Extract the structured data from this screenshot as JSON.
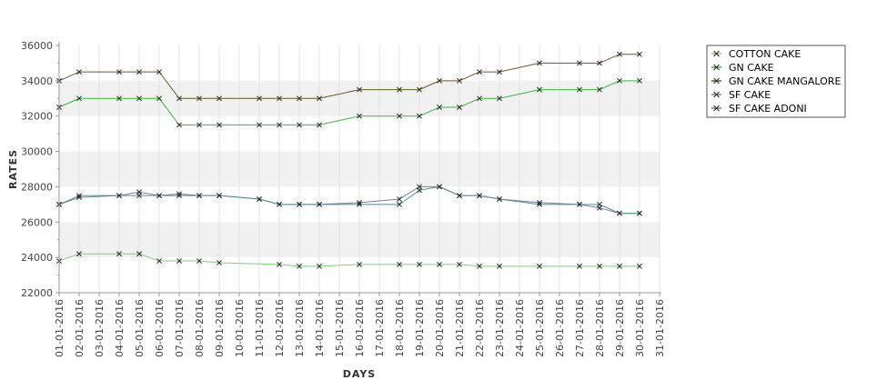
{
  "chart_data": {
    "type": "line",
    "xlabel": "DAYS",
    "ylabel": "RATES",
    "ylim": [
      22000,
      36000
    ],
    "y_ticks": [
      22000,
      24000,
      26000,
      28000,
      30000,
      32000,
      34000,
      36000
    ],
    "grid": true,
    "legend_position": "top-right",
    "categories": [
      "01-01-2016",
      "02-01-2016",
      "03-01-2016",
      "04-01-2016",
      "05-01-2016",
      "06-01-2016",
      "07-01-2016",
      "08-01-2016",
      "09-01-2016",
      "10-01-2016",
      "11-01-2016",
      "12-01-2016",
      "13-01-2016",
      "14-01-2016",
      "15-01-2016",
      "16-01-2016",
      "17-01-2016",
      "18-01-2016",
      "19-01-2016",
      "20-01-2016",
      "21-01-2016",
      "22-01-2016",
      "23-01-2016",
      "24-01-2016",
      "25-01-2016",
      "26-01-2016",
      "27-01-2016",
      "28-01-2016",
      "29-01-2016",
      "30-01-2016",
      "31-01-2016"
    ],
    "series": [
      {
        "name": "COTTON CAKE",
        "color": "#7fd07f",
        "points": [
          [
            "01-01-2016",
            23800
          ],
          [
            "02-01-2016",
            24200
          ],
          [
            "04-01-2016",
            24200
          ],
          [
            "05-01-2016",
            24200
          ],
          [
            "06-01-2016",
            23800
          ],
          [
            "07-01-2016",
            23800
          ],
          [
            "08-01-2016",
            23800
          ],
          [
            "09-01-2016",
            23700
          ],
          [
            "12-01-2016",
            23600
          ],
          [
            "13-01-2016",
            23500
          ],
          [
            "14-01-2016",
            23500
          ],
          [
            "16-01-2016",
            23600
          ],
          [
            "18-01-2016",
            23600
          ],
          [
            "19-01-2016",
            23600
          ],
          [
            "20-01-2016",
            23600
          ],
          [
            "21-01-2016",
            23600
          ],
          [
            "22-01-2016",
            23500
          ],
          [
            "23-01-2016",
            23500
          ],
          [
            "25-01-2016",
            23500
          ],
          [
            "27-01-2016",
            23500
          ],
          [
            "28-01-2016",
            23500
          ],
          [
            "29-01-2016",
            23500
          ],
          [
            "30-01-2016",
            23500
          ]
        ]
      },
      {
        "name": "GN CAKE",
        "color": "#3cb83c",
        "points": [
          [
            "01-01-2016",
            32500
          ],
          [
            "02-01-2016",
            33000
          ],
          [
            "04-01-2016",
            33000
          ],
          [
            "05-01-2016",
            33000
          ],
          [
            "06-01-2016",
            33000
          ],
          [
            "07-01-2016",
            31500
          ],
          [
            "08-01-2016",
            31500
          ],
          [
            "09-01-2016",
            31500
          ],
          [
            "11-01-2016",
            31500
          ],
          [
            "12-01-2016",
            31500
          ],
          [
            "13-01-2016",
            31500
          ],
          [
            "14-01-2016",
            31500
          ],
          [
            "16-01-2016",
            32000
          ],
          [
            "18-01-2016",
            32000
          ],
          [
            "19-01-2016",
            32000
          ],
          [
            "20-01-2016",
            32500
          ],
          [
            "21-01-2016",
            32500
          ],
          [
            "22-01-2016",
            33000
          ],
          [
            "23-01-2016",
            33000
          ],
          [
            "25-01-2016",
            33500
          ],
          [
            "27-01-2016",
            33500
          ],
          [
            "28-01-2016",
            33500
          ],
          [
            "29-01-2016",
            34000
          ],
          [
            "30-01-2016",
            34000
          ]
        ]
      },
      {
        "name": "GN CAKE MANGALORE",
        "color": "#6b5a1e",
        "points": [
          [
            "01-01-2016",
            34000
          ],
          [
            "02-01-2016",
            34500
          ],
          [
            "04-01-2016",
            34500
          ],
          [
            "05-01-2016",
            34500
          ],
          [
            "06-01-2016",
            34500
          ],
          [
            "07-01-2016",
            33000
          ],
          [
            "08-01-2016",
            33000
          ],
          [
            "09-01-2016",
            33000
          ],
          [
            "11-01-2016",
            33000
          ],
          [
            "12-01-2016",
            33000
          ],
          [
            "13-01-2016",
            33000
          ],
          [
            "14-01-2016",
            33000
          ],
          [
            "16-01-2016",
            33500
          ],
          [
            "18-01-2016",
            33500
          ],
          [
            "19-01-2016",
            33500
          ],
          [
            "20-01-2016",
            34000
          ],
          [
            "21-01-2016",
            34000
          ],
          [
            "22-01-2016",
            34500
          ],
          [
            "23-01-2016",
            34500
          ],
          [
            "25-01-2016",
            35000
          ],
          [
            "27-01-2016",
            35000
          ],
          [
            "28-01-2016",
            35000
          ],
          [
            "29-01-2016",
            35500
          ],
          [
            "30-01-2016",
            35500
          ]
        ]
      },
      {
        "name": "SF CAKE",
        "color": "#7a7ab8",
        "points": [
          [
            "01-01-2016",
            27000
          ],
          [
            "02-01-2016",
            27500
          ],
          [
            "04-01-2016",
            27500
          ],
          [
            "05-01-2016",
            27700
          ],
          [
            "06-01-2016",
            27500
          ],
          [
            "07-01-2016",
            27600
          ],
          [
            "08-01-2016",
            27500
          ],
          [
            "09-01-2016",
            27500
          ],
          [
            "11-01-2016",
            27300
          ],
          [
            "12-01-2016",
            27000
          ],
          [
            "13-01-2016",
            27000
          ],
          [
            "14-01-2016",
            27000
          ],
          [
            "16-01-2016",
            27100
          ],
          [
            "18-01-2016",
            27300
          ],
          [
            "19-01-2016",
            28000
          ],
          [
            "20-01-2016",
            28000
          ],
          [
            "21-01-2016",
            27500
          ],
          [
            "22-01-2016",
            27500
          ],
          [
            "23-01-2016",
            27300
          ],
          [
            "25-01-2016",
            27100
          ],
          [
            "27-01-2016",
            27000
          ],
          [
            "28-01-2016",
            26800
          ],
          [
            "29-01-2016",
            26500
          ],
          [
            "30-01-2016",
            26500
          ]
        ]
      },
      {
        "name": "SF CAKE ADONI",
        "color": "#4f8f8f",
        "points": [
          [
            "01-01-2016",
            27000
          ],
          [
            "02-01-2016",
            27400
          ],
          [
            "04-01-2016",
            27500
          ],
          [
            "05-01-2016",
            27500
          ],
          [
            "06-01-2016",
            27500
          ],
          [
            "07-01-2016",
            27500
          ],
          [
            "08-01-2016",
            27500
          ],
          [
            "09-01-2016",
            27500
          ],
          [
            "11-01-2016",
            27300
          ],
          [
            "12-01-2016",
            27000
          ],
          [
            "13-01-2016",
            27000
          ],
          [
            "14-01-2016",
            27000
          ],
          [
            "16-01-2016",
            27000
          ],
          [
            "18-01-2016",
            27000
          ],
          [
            "19-01-2016",
            27800
          ],
          [
            "20-01-2016",
            28000
          ],
          [
            "21-01-2016",
            27500
          ],
          [
            "22-01-2016",
            27500
          ],
          [
            "23-01-2016",
            27300
          ],
          [
            "25-01-2016",
            27000
          ],
          [
            "27-01-2016",
            27000
          ],
          [
            "28-01-2016",
            27000
          ],
          [
            "29-01-2016",
            26500
          ],
          [
            "30-01-2016",
            26500
          ]
        ]
      }
    ]
  }
}
